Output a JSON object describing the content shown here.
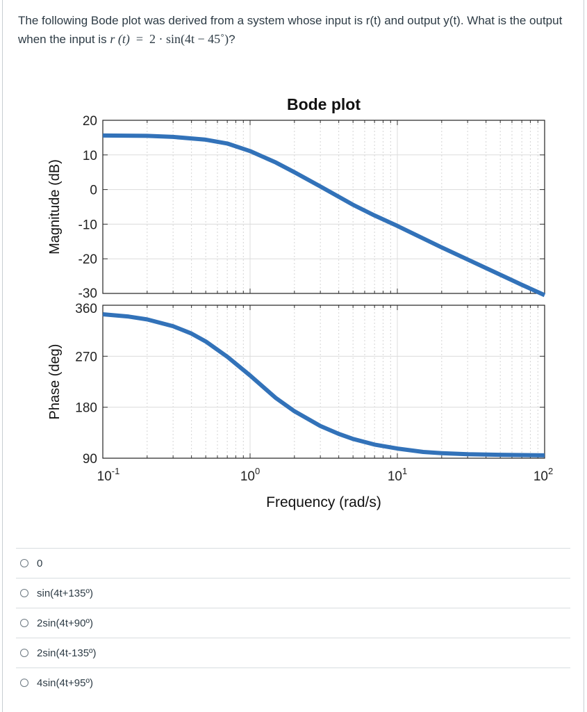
{
  "question": {
    "text": "The following Bode plot was derived from a system whose input is r(t) and output y(t).  What is the output when the input is",
    "math_lhs": "r",
    "math_arg": "(t)",
    "math_eq": "=",
    "math_rhs": "2 · sin(4t − 45˚)",
    "math_end": "?"
  },
  "chart_data": {
    "type": "line",
    "title": "Bode plot",
    "xlabel": "Frequency  (rad/s)",
    "xscale": "log",
    "xlim": [
      0.1,
      100
    ],
    "x_ticks": [
      {
        "base": "10",
        "exp": "-1",
        "value": 0.1
      },
      {
        "base": "10",
        "exp": "0",
        "value": 1
      },
      {
        "base": "10",
        "exp": "1",
        "value": 10
      },
      {
        "base": "10",
        "exp": "2",
        "value": 100
      }
    ],
    "grid": true,
    "series_color": "#3272b9",
    "panels": [
      {
        "name": "magnitude",
        "ylabel": "Magnitude (dB)",
        "ylim": [
          -30,
          20
        ],
        "y_ticks": [
          "20",
          "10",
          "0",
          "-10",
          "-20",
          "-30"
        ],
        "y_tick_values": [
          20,
          10,
          0,
          -10,
          -20,
          -30
        ],
        "x": [
          0.1,
          0.2,
          0.3,
          0.5,
          0.7,
          1,
          1.5,
          2,
          3,
          5,
          7,
          10,
          20,
          30,
          50,
          70,
          100
        ],
        "y": [
          15.6,
          15.5,
          15.2,
          14.4,
          13.3,
          11.1,
          7.8,
          5.0,
          0.9,
          -4.4,
          -7.5,
          -10.5,
          -16.7,
          -20.2,
          -24.6,
          -27.5,
          -30.5
        ]
      },
      {
        "name": "phase",
        "ylabel": "Phase (deg)",
        "ylim": [
          90,
          360
        ],
        "y_ticks": [
          "360",
          "270",
          "180",
          "90"
        ],
        "y_tick_values": [
          360,
          270,
          180,
          90
        ],
        "x": [
          0.1,
          0.15,
          0.2,
          0.3,
          0.4,
          0.5,
          0.7,
          1,
          1.5,
          2,
          3,
          4,
          5,
          7,
          10,
          15,
          20,
          30,
          50,
          100
        ],
        "y": [
          344,
          340,
          335,
          323,
          310,
          296,
          269,
          236,
          196,
          173,
          147,
          133,
          124,
          114,
          107,
          101,
          99,
          97,
          96,
          95
        ]
      }
    ]
  },
  "answers": [
    {
      "label": "0"
    },
    {
      "label": "sin(4t+135º)"
    },
    {
      "label": "2sin(4t+90º)"
    },
    {
      "label": "2sin(4t-135º)"
    },
    {
      "label": "4sin(4t+95º)"
    }
  ]
}
